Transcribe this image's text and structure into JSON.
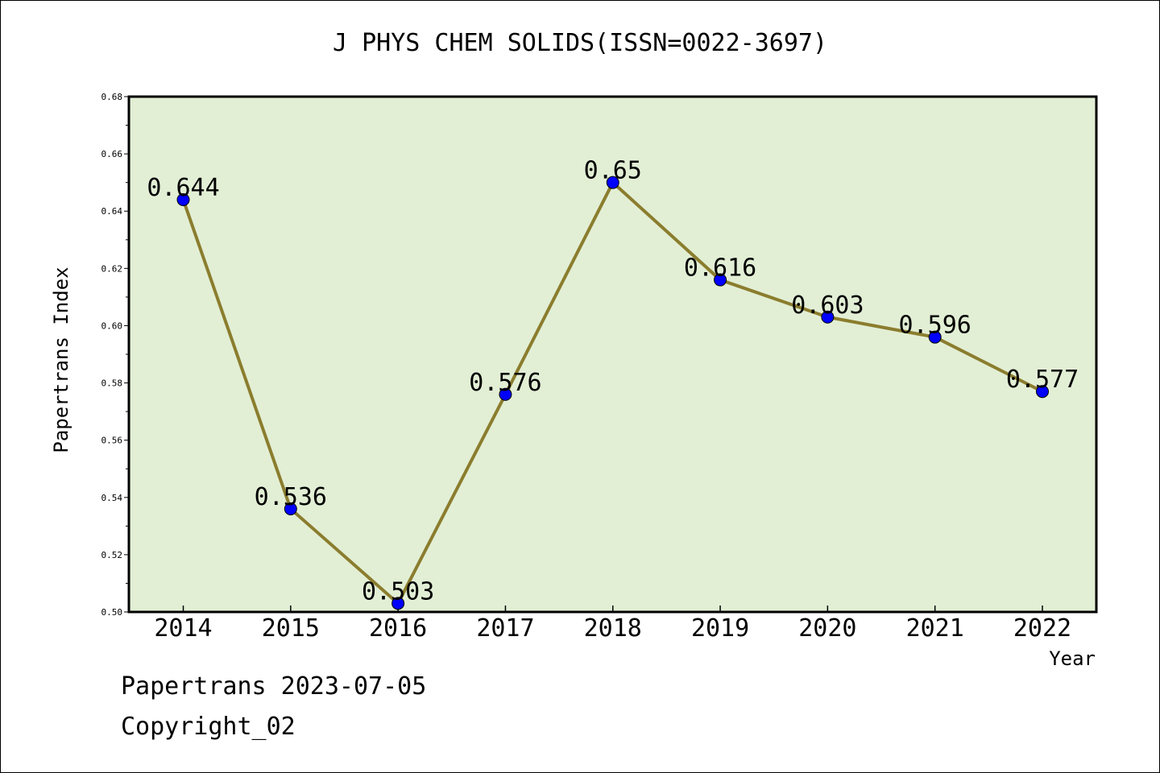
{
  "chart_data": {
    "type": "line",
    "title": "J PHYS CHEM SOLIDS(ISSN=0022-3697)",
    "xlabel": "Year",
    "ylabel": "Papertrans Index",
    "categories": [
      "2014",
      "2015",
      "2016",
      "2017",
      "2018",
      "2019",
      "2020",
      "2021",
      "2022"
    ],
    "series": [
      {
        "values": [
          0.644,
          0.536,
          0.503,
          0.576,
          0.65,
          0.616,
          0.603,
          0.596,
          0.577
        ],
        "labels": [
          "0.644",
          "0.536",
          "0.503",
          "0.576",
          "0.65",
          "0.616",
          "0.603",
          "0.596",
          "0.577"
        ]
      }
    ],
    "ylim": [
      0.5,
      0.68
    ],
    "yticks": [
      "0.50",
      "0.52",
      "0.54",
      "0.56",
      "0.58",
      "0.60",
      "0.62",
      "0.64",
      "0.66",
      "0.68"
    ],
    "grid": false,
    "colors": {
      "plot_background": "#e2efd5",
      "line": "#8b7d2e",
      "marker": "#0000ff"
    }
  },
  "footer": {
    "date_line": "Papertrans 2023-07-05",
    "copyright_line": "Copyright_02"
  }
}
